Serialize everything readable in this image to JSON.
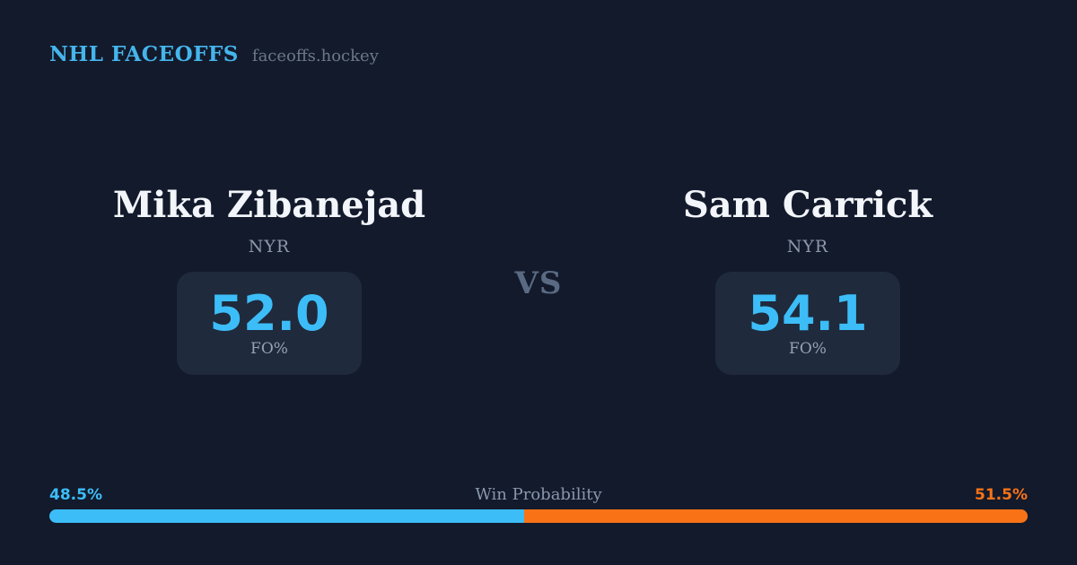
{
  "header": {
    "brand": "NHL FACEOFFS",
    "site": "faceoffs.hockey"
  },
  "vs_label": "VS",
  "players": [
    {
      "name": "Mika Zibanejad",
      "team": "NYR",
      "stat_value": "52.0",
      "stat_label": "FO%",
      "win_probability": "48.5%",
      "color": "#3CBDF8"
    },
    {
      "name": "Sam Carrick",
      "team": "NYR",
      "stat_value": "54.1",
      "stat_label": "FO%",
      "win_probability": "51.5%",
      "color": "#F97316"
    }
  ],
  "win_probability": {
    "label": "Win Probability",
    "left_value": "48.5%",
    "right_value": "51.5%",
    "left_pct": 48.5,
    "right_pct": 51.5
  },
  "colors": {
    "background": "#121A2C",
    "card": "#1F2A3C",
    "accent_blue": "#3CBDF8",
    "accent_orange": "#F97316",
    "brand_blue": "#45B5EC",
    "text_primary": "#F2F5F9",
    "text_muted": "#8C98AA",
    "vs_gray": "#5A6A82"
  },
  "chart_data": {
    "type": "bar",
    "title": "Win Probability",
    "categories": [
      "Mika Zibanejad (NYR)",
      "Sam Carrick (NYR)"
    ],
    "series": [
      {
        "name": "FO%",
        "values": [
          52.0,
          54.1
        ]
      },
      {
        "name": "Win Probability (%)",
        "values": [
          48.5,
          51.5
        ]
      }
    ],
    "xlabel": "",
    "ylabel": "",
    "ylim": [
      0,
      100
    ],
    "grid": false,
    "legend_position": "none"
  }
}
